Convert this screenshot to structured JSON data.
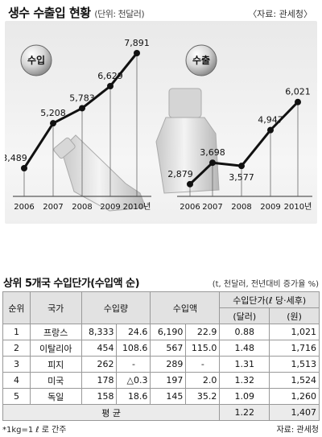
{
  "header": {
    "title": "생수 수출입 현황",
    "unit": "(단위: 천달러)",
    "source": "〈자료: 관세청〉"
  },
  "chart_data": [
    {
      "type": "line",
      "title": "수입",
      "x": [
        "2006",
        "2007",
        "2008",
        "2009",
        "2010년"
      ],
      "values": [
        3489,
        5208,
        5783,
        6629,
        7891
      ],
      "value_labels": [
        "3,489",
        "5,208",
        "5,783",
        "6,629",
        "7,891"
      ]
    },
    {
      "type": "line",
      "title": "수출",
      "x": [
        "2006",
        "2007",
        "2008",
        "2009",
        "2010년"
      ],
      "values": [
        2879,
        3698,
        3577,
        4947,
        6021
      ],
      "value_labels": [
        "2,879",
        "3,698",
        "3,577",
        "4,947",
        "6,021"
      ]
    }
  ],
  "table": {
    "title": "상위 5개국 수입단가(수입액 순)",
    "unit": "(t, 천달러, 전년대비 증가율 %)",
    "headers": {
      "rank": "순위",
      "country": "국가",
      "volume": "수입량",
      "amount": "수입액",
      "price": "수입단가(ℓ 당·세후)",
      "usd": "(달러)",
      "krw": "(원)"
    },
    "rows": [
      {
        "rank": "1",
        "country": "프랑스",
        "vol": "8,333",
        "vol_pct": "24.6",
        "amt": "6,190",
        "amt_pct": "22.9",
        "usd": "0.88",
        "krw": "1,021"
      },
      {
        "rank": "2",
        "country": "이탈리아",
        "vol": "454",
        "vol_pct": "108.6",
        "amt": "567",
        "amt_pct": "115.0",
        "usd": "1.48",
        "krw": "1,716"
      },
      {
        "rank": "3",
        "country": "피지",
        "vol": "262",
        "vol_pct": "-",
        "amt": "289",
        "amt_pct": "-",
        "usd": "1.31",
        "krw": "1,513"
      },
      {
        "rank": "4",
        "country": "미국",
        "vol": "178",
        "vol_pct": "△0.3",
        "amt": "197",
        "amt_pct": "2.0",
        "usd": "1.32",
        "krw": "1,524"
      },
      {
        "rank": "5",
        "country": "독일",
        "vol": "158",
        "vol_pct": "18.6",
        "amt": "145",
        "amt_pct": "35.2",
        "usd": "1.09",
        "krw": "1,260"
      }
    ],
    "average": {
      "label": "평 균",
      "usd": "1.22",
      "krw": "1,407"
    }
  },
  "footer": {
    "note": "*1kg=1 ℓ 로 간주",
    "source": "자료: 관세청"
  }
}
